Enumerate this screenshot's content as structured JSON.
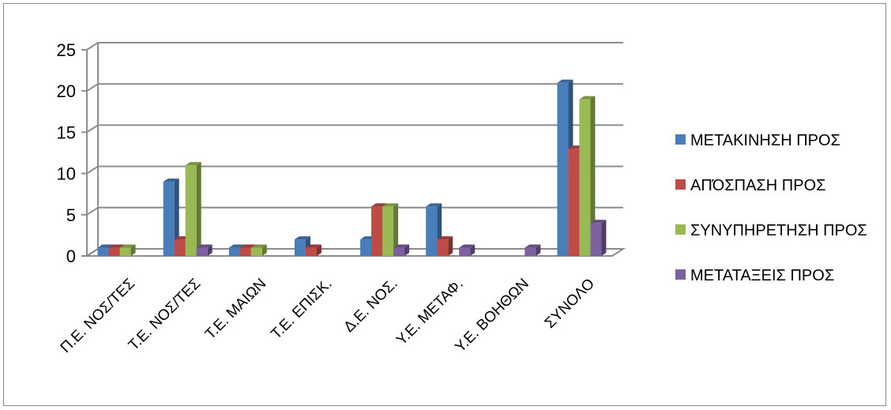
{
  "chart_data": {
    "type": "bar",
    "categories": [
      "Π.Ε. ΝΟΣ/ΤΕΣ",
      "Τ.Ε. ΝΟΣ/ΤΕΣ",
      "Τ.Ε. ΜΑΙΩΝ",
      "Τ.Ε. ΕΠΙΣΚ.",
      "Δ.Ε. ΝΟΣ.",
      "Υ.Ε. ΜΕΤΑΦ.",
      "Υ.Ε. ΒΟΗΘΩΝ",
      "ΣΥΝΟΛΟ"
    ],
    "series": [
      {
        "name": "ΜΕΤΑΚΙΝΗΣΗ ΠΡΟΣ",
        "color": "#4a7ebb",
        "values": [
          1,
          9,
          1,
          2,
          2,
          6,
          0,
          21
        ]
      },
      {
        "name": "ΑΠΌΣΠΑΣΗ ΠΡΟΣ",
        "color": "#be4b48",
        "values": [
          1,
          2,
          1,
          1,
          6,
          2,
          0,
          13
        ]
      },
      {
        "name": "ΣΥΝΥΠΗΡΕΤΗΣΗ ΠΡΟΣ",
        "color": "#98b954",
        "values": [
          1,
          11,
          1,
          0,
          6,
          0,
          0,
          19
        ]
      },
      {
        "name": "ΜΕΤΑΤΑΞΕΙΣ ΠΡΟΣ",
        "color": "#7d60a0",
        "values": [
          0,
          1,
          0,
          0,
          1,
          1,
          1,
          4
        ]
      }
    ],
    "ylim": [
      0,
      25
    ],
    "yticks": [
      0,
      5,
      10,
      15,
      20,
      25
    ],
    "grid": true,
    "legend_position": "right",
    "title": "",
    "xlabel": "",
    "ylabel": ""
  }
}
